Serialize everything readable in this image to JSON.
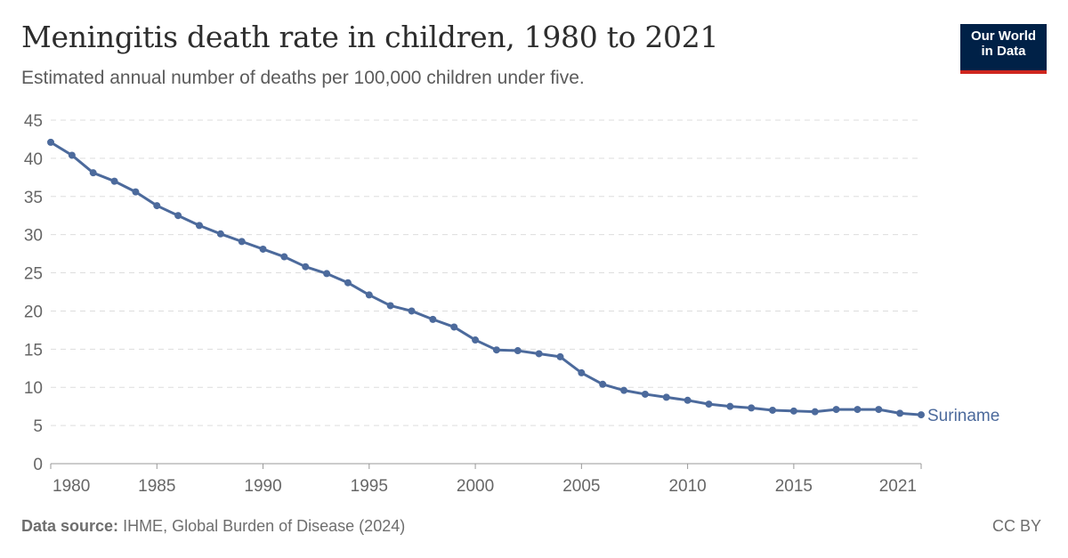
{
  "header": {
    "title": "Meningitis death rate in children, 1980 to 2021",
    "subtitle": "Estimated annual number of deaths per 100,000 children under five."
  },
  "logo": {
    "line1": "Our World",
    "line2": "in Data",
    "bg_color": "#002147",
    "accent_color": "#ce261e"
  },
  "footer": {
    "source_label": "Data source:",
    "source_text": "IHME, Global Burden of Disease (2024)",
    "license": "CC BY"
  },
  "chart_data": {
    "type": "line",
    "title": "Meningitis death rate in children, 1980 to 2021",
    "subtitle": "Estimated annual number of deaths per 100,000 children under five.",
    "xlabel": "",
    "ylabel": "",
    "xlim": [
      1980,
      2021
    ],
    "ylim": [
      0,
      45
    ],
    "x_ticks": [
      1980,
      1985,
      1990,
      1995,
      2000,
      2005,
      2010,
      2015,
      2021
    ],
    "y_ticks": [
      0,
      5,
      10,
      15,
      20,
      25,
      30,
      35,
      40,
      45
    ],
    "grid": "horizontal dashed",
    "legend": "inline label at line end",
    "line_color": "#4c6a9c",
    "x": [
      1980,
      1981,
      1982,
      1983,
      1984,
      1985,
      1986,
      1987,
      1988,
      1989,
      1990,
      1991,
      1992,
      1993,
      1994,
      1995,
      1996,
      1997,
      1998,
      1999,
      2000,
      2001,
      2002,
      2003,
      2004,
      2005,
      2006,
      2007,
      2008,
      2009,
      2010,
      2011,
      2012,
      2013,
      2014,
      2015,
      2016,
      2017,
      2018,
      2019,
      2020,
      2021
    ],
    "series": [
      {
        "name": "Suriname",
        "values": [
          42.1,
          40.4,
          38.1,
          37.0,
          35.6,
          33.8,
          32.5,
          31.2,
          30.1,
          29.1,
          28.1,
          27.1,
          25.8,
          24.9,
          23.7,
          22.1,
          20.7,
          20.0,
          18.9,
          17.9,
          16.2,
          14.9,
          14.8,
          14.4,
          14.0,
          11.9,
          10.4,
          9.6,
          9.1,
          8.7,
          8.3,
          7.8,
          7.5,
          7.3,
          7.0,
          6.9,
          6.8,
          7.1,
          7.1,
          7.1,
          6.6,
          6.4
        ]
      }
    ]
  }
}
